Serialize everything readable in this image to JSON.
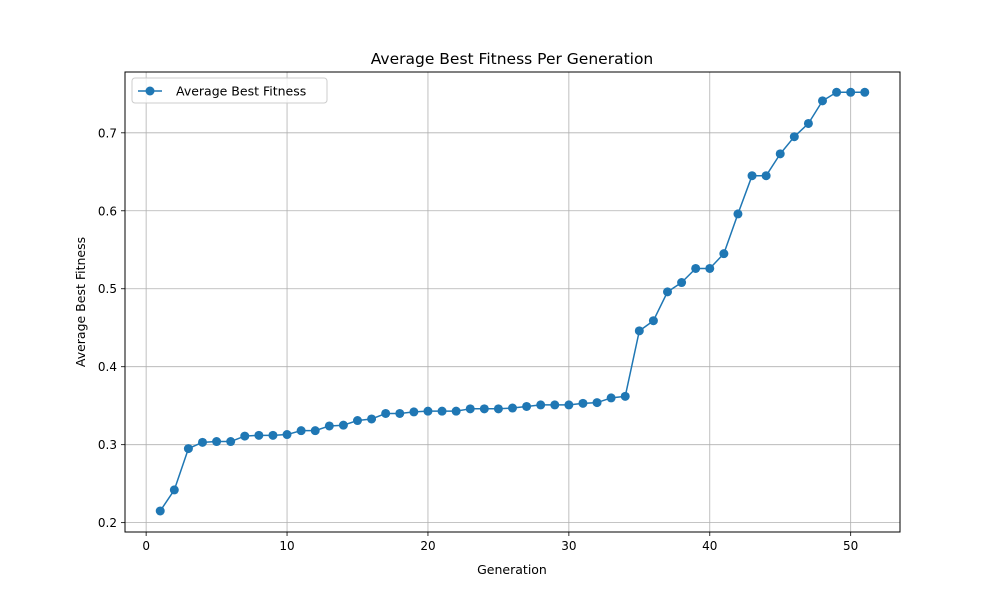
{
  "chart_data": {
    "type": "line",
    "title": "Average Best Fitness Per Generation",
    "xlabel": "Generation",
    "ylabel": "Average Best Fitness",
    "xlim": [
      -1.5,
      53.5
    ],
    "ylim": [
      0.188,
      0.778
    ],
    "xticks": [
      0,
      10,
      20,
      30,
      40,
      50
    ],
    "yticks": [
      0.2,
      0.3,
      0.4,
      0.5,
      0.6,
      0.7
    ],
    "grid": true,
    "legend_position": "top-left",
    "series": [
      {
        "name": "Average Best Fitness",
        "color": "#1f77b4",
        "marker": "circle",
        "x": [
          1,
          2,
          3,
          4,
          5,
          6,
          7,
          8,
          9,
          10,
          11,
          12,
          13,
          14,
          15,
          16,
          17,
          18,
          19,
          20,
          21,
          22,
          23,
          24,
          25,
          26,
          27,
          28,
          29,
          30,
          31,
          32,
          33,
          34,
          35,
          36,
          37,
          38,
          39,
          40,
          41,
          42,
          43,
          44,
          45,
          46,
          47,
          48,
          49,
          50,
          51
        ],
        "y": [
          0.215,
          0.242,
          0.295,
          0.303,
          0.304,
          0.304,
          0.311,
          0.312,
          0.312,
          0.313,
          0.318,
          0.318,
          0.324,
          0.325,
          0.331,
          0.333,
          0.34,
          0.34,
          0.342,
          0.343,
          0.343,
          0.343,
          0.346,
          0.346,
          0.346,
          0.347,
          0.349,
          0.351,
          0.351,
          0.351,
          0.353,
          0.354,
          0.36,
          0.362,
          0.446,
          0.459,
          0.496,
          0.508,
          0.526,
          0.526,
          0.545,
          0.596,
          0.645,
          0.645,
          0.673,
          0.695,
          0.712,
          0.741,
          0.752,
          0.752,
          0.752
        ]
      }
    ]
  }
}
